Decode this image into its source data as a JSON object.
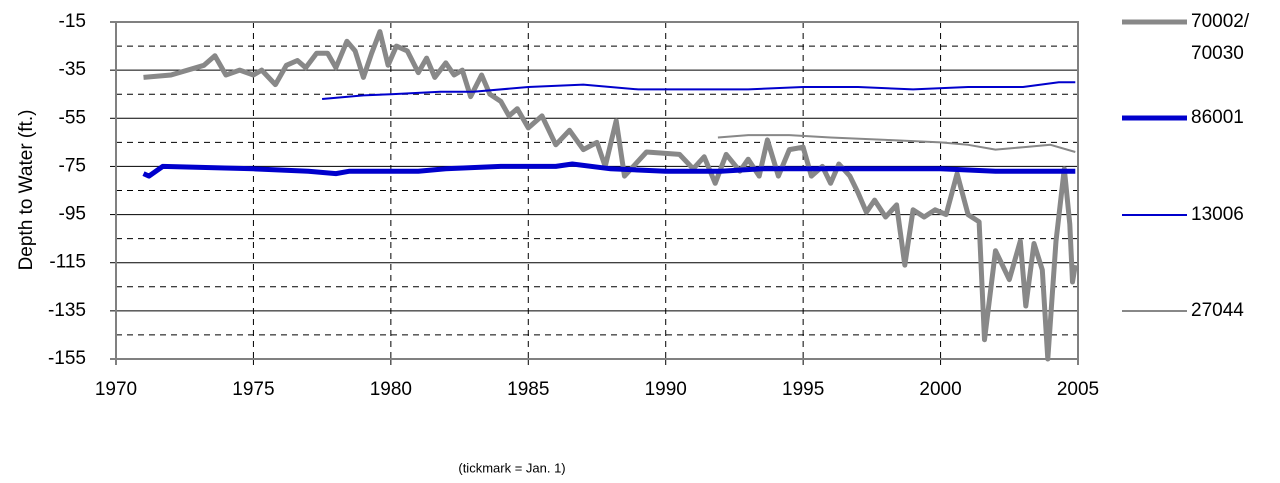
{
  "chart_data": {
    "type": "line",
    "y_label": "Depth to Water (ft.)",
    "note": "(tickmark = Jan. 1)",
    "xlim": [
      1970,
      2005
    ],
    "xticks": [
      1970,
      1975,
      1980,
      1985,
      1990,
      1995,
      2000,
      2005
    ],
    "ylim": [
      -155,
      -15
    ],
    "yticks": [
      -155,
      -135,
      -115,
      -95,
      -75,
      -55,
      -35,
      -15
    ],
    "grid": true,
    "legend": "right",
    "series": [
      {
        "name": "70002/70030",
        "color": "#888888",
        "width": 5,
        "x": [
          1971.0,
          1972.0,
          1973.2,
          1973.6,
          1974.0,
          1974.5,
          1975.0,
          1975.3,
          1975.8,
          1976.2,
          1976.6,
          1976.9,
          1977.3,
          1977.7,
          1978.0,
          1978.4,
          1978.7,
          1979.0,
          1979.3,
          1979.6,
          1979.9,
          1980.2,
          1980.6,
          1981.0,
          1981.3,
          1981.6,
          1982.0,
          1982.3,
          1982.6,
          1982.9,
          1983.3,
          1983.6,
          1984.0,
          1984.3,
          1984.6,
          1985.0,
          1985.5,
          1986.0,
          1986.5,
          1987.0,
          1987.5,
          1987.8,
          1988.2,
          1988.5,
          1988.9,
          1989.3,
          1990.5,
          1991.0,
          1991.4,
          1991.8,
          1992.2,
          1992.7,
          1993.0,
          1993.4,
          1993.7,
          1994.1,
          1994.5,
          1995.0,
          1995.3,
          1995.7,
          1996.0,
          1996.3,
          1996.7,
          1997.0,
          1997.3,
          1997.6,
          1998.0,
          1998.4,
          1998.7,
          1999.0,
          1999.4,
          1999.8,
          2000.2,
          2000.6,
          2001.0,
          2001.4,
          2001.6,
          2002.0,
          2002.5,
          2002.9,
          2003.1,
          2003.4,
          2003.7,
          2003.9,
          2004.2,
          2004.5,
          2004.7,
          2004.8,
          2004.9
        ],
        "values": [
          -38,
          -37,
          -33,
          -29,
          -37,
          -35,
          -37,
          -35,
          -41,
          -33,
          -31,
          -34,
          -28,
          -28,
          -34,
          -23,
          -27,
          -38,
          -28,
          -19,
          -33,
          -25,
          -27,
          -36,
          -30,
          -38,
          -32,
          -37,
          -35,
          -46,
          -37,
          -45,
          -48,
          -54,
          -51,
          -59,
          -54,
          -66,
          -60,
          -68,
          -65,
          -75,
          -56,
          -79,
          -74,
          -69,
          -70,
          -76,
          -71,
          -82,
          -70,
          -77,
          -72,
          -79,
          -64,
          -79,
          -68,
          -67,
          -79,
          -75,
          -82,
          -74,
          -79,
          -86,
          -94,
          -89,
          -96,
          -91,
          -116,
          -93,
          -96,
          -93,
          -95,
          -78,
          -95,
          -98,
          -147,
          -110,
          -122,
          -106,
          -133,
          -107,
          -118,
          -155,
          -106,
          -76,
          -99,
          -123,
          -116
        ]
      },
      {
        "name": "86001",
        "color": "#0000cc",
        "width": 5,
        "x": [
          1971.0,
          1971.2,
          1971.7,
          1975.0,
          1977.0,
          1978.0,
          1978.5,
          1979.0,
          1981.0,
          1982.0,
          1984.0,
          1986.0,
          1986.6,
          1988.0,
          1990.0,
          1992.0,
          1993.5,
          1995.0,
          1998.0,
          2000.0,
          2002.0,
          2004.0,
          2004.9
        ],
        "values": [
          -78,
          -79,
          -75,
          -76,
          -77,
          -78,
          -77,
          -77,
          -77,
          -76,
          -75,
          -75,
          -74,
          -76,
          -77,
          -77,
          -76,
          -76,
          -76,
          -76,
          -77,
          -77,
          -77
        ]
      },
      {
        "name": "13006",
        "color": "#0000cc",
        "width": 2,
        "x": [
          1977.5,
          1979.0,
          1980.0,
          1981.8,
          1983.0,
          1985.0,
          1987.0,
          1989.0,
          1991.0,
          1993.0,
          1995.0,
          1997.0,
          1999.0,
          2001.0,
          2003.0,
          2004.3,
          2004.9
        ],
        "values": [
          -47,
          -45.5,
          -45,
          -44,
          -44,
          -42,
          -41,
          -43,
          -43,
          -43,
          -42,
          -42,
          -43,
          -42,
          -42,
          -40,
          -40
        ]
      },
      {
        "name": "27044",
        "color": "#888888",
        "width": 2,
        "x": [
          1991.9,
          1993.0,
          1994.5,
          1996.0,
          1998.0,
          2000.0,
          2001.0,
          2002.0,
          2003.0,
          2004.0,
          2004.9
        ],
        "values": [
          -63,
          -62,
          -62,
          -63,
          -64,
          -65,
          -66,
          -68,
          -67,
          -66,
          -69
        ]
      }
    ]
  }
}
